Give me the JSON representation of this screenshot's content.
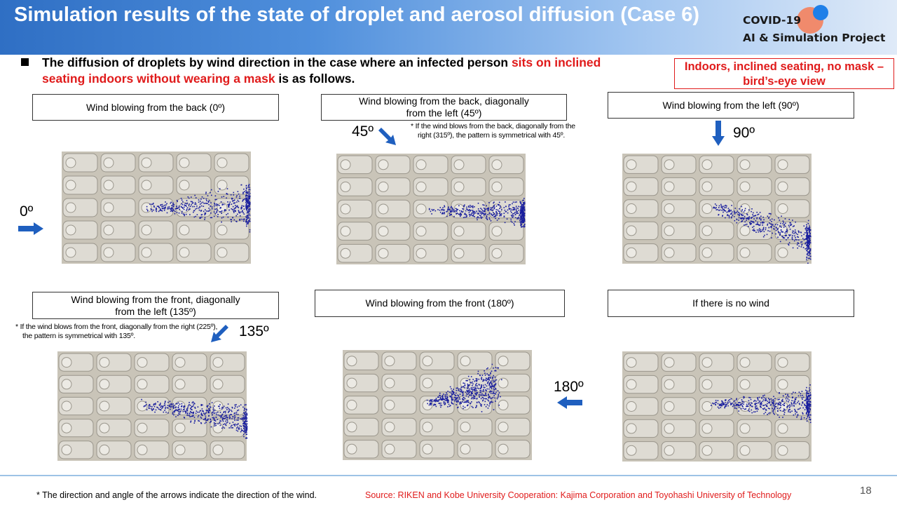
{
  "header": {
    "title": "Simulation results of the state of droplet and aerosol diffusion (Case 6)",
    "logo_line1": "COVID-19",
    "logo_line2": "AI & Simulation Project"
  },
  "intro": {
    "text_a": "The diffusion of droplets by wind direction in the case where an infected person ",
    "text_red": "sits on inclined seating indoors without wearing a mask",
    "text_b": " is as follows."
  },
  "view_box": "Indoors, inclined seating, no mask – bird’s-eye view",
  "panels": [
    {
      "label": "Wind blowing from the back (0º)",
      "angle": "0º"
    },
    {
      "label": "Wind blowing from the back, diagonally from the left (45º)",
      "angle": "45º",
      "note": "* If the wind blows from the back, diagonally from the right (315º), the pattern is symmetrical with 45º."
    },
    {
      "label": "Wind blowing from the left (90º)",
      "angle": "90º"
    },
    {
      "label": "Wind blowing from the front, diagonally from the left (135º)",
      "angle": "135º",
      "note": "* If the wind blows from the front, diagonally from the right (225º), the pattern is symmetrical with 135º."
    },
    {
      "label": "Wind blowing from the front (180º)",
      "angle": "180º"
    },
    {
      "label": "If there is no wind"
    }
  ],
  "footer": {
    "note": "* The direction and angle of the arrows indicate the direction of the wind.",
    "source": "Source: RIKEN  and Kobe University Cooperation: Kajima Corporation and Toyohashi University of Technology",
    "page": "18"
  },
  "colors": {
    "accent_blue": "#1f5fbf",
    "red": "#e01b1b",
    "droplet": "#1a1f9e",
    "seat": "#c9c4b8"
  }
}
